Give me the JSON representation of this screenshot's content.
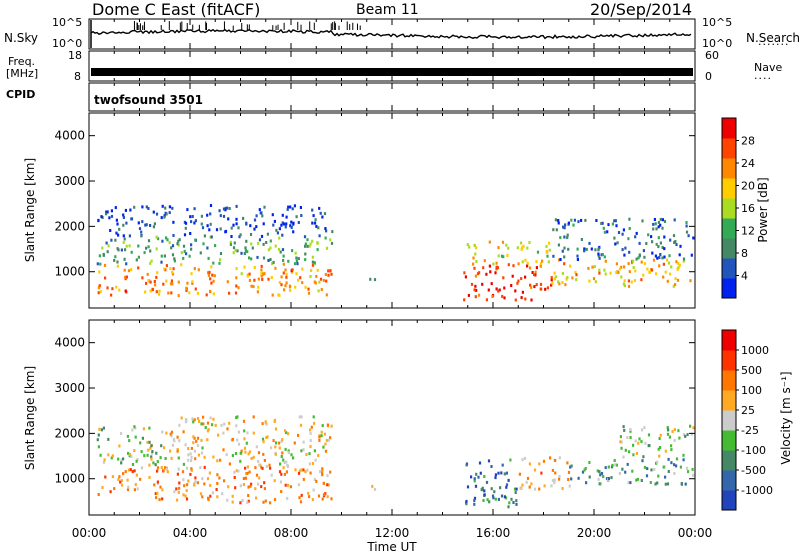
{
  "header": {
    "station": "Dome C East (fitACF)",
    "beam": "Beam 11",
    "date": "20/Sep/2014"
  },
  "status_panels": {
    "nsky_label": "N.Sky",
    "nsearch_label": "N.Search",
    "noise_ticks": [
      "10^5",
      "10^0"
    ],
    "freq_label_1": "Freq.",
    "freq_label_2": "[MHz]",
    "freq_ticks": [
      "18",
      "8"
    ],
    "nave_label": "Nave",
    "nave_ticks": [
      "60",
      "0"
    ],
    "cpid_label": "CPID",
    "cpid_value": "twofsound 3501"
  },
  "colors": {
    "power_scale": [
      "#0022ee",
      "#2255bb",
      "#448866",
      "#33aa55",
      "#aadd22",
      "#ffcc00",
      "#ff8800",
      "#ff4400",
      "#ee0000"
    ],
    "velocity_scale": [
      "#2244bb",
      "#3366aa",
      "#448866",
      "#44bb33",
      "#cccccc",
      "#ffaa22",
      "#ff7700",
      "#ff3300",
      "#ee0000"
    ]
  },
  "chart_data": [
    {
      "type": "heatmap",
      "name": "power",
      "xlabel": "",
      "ylabel": "Slant Range [km]",
      "xlim": [
        0,
        24
      ],
      "ylim": [
        200,
        4500
      ],
      "yticks": [
        "1000",
        "2000",
        "3000",
        "4000"
      ],
      "colorbar_label": "Power [dB]",
      "colorbar_ticks": [
        "4",
        "8",
        "12",
        "16",
        "20",
        "24",
        "28"
      ],
      "regions": [
        {
          "x0": 0.3,
          "x1": 9.6,
          "y0": 500,
          "y1": 1200,
          "level": 0.72
        },
        {
          "x0": 0.3,
          "x1": 9.6,
          "y0": 1200,
          "y1": 1800,
          "level": 0.35
        },
        {
          "x0": 0.3,
          "x1": 9.6,
          "y0": 1800,
          "y1": 2500,
          "level": 0.12
        },
        {
          "x0": 14.8,
          "x1": 18.3,
          "y0": 400,
          "y1": 1200,
          "level": 0.9
        },
        {
          "x0": 14.8,
          "x1": 18.3,
          "y0": 1200,
          "y1": 1700,
          "level": 0.6
        },
        {
          "x0": 18.3,
          "x1": 23.9,
          "y0": 700,
          "y1": 1300,
          "level": 0.65
        },
        {
          "x0": 18.3,
          "x1": 23.9,
          "y0": 1300,
          "y1": 2200,
          "level": 0.2
        },
        {
          "x0": 11.0,
          "x1": 11.4,
          "y0": 700,
          "y1": 900,
          "level": 0.15
        }
      ]
    },
    {
      "type": "heatmap",
      "name": "velocity",
      "xlabel": "Time UT",
      "ylabel": "Slant Range [km]",
      "xlim": [
        0,
        24
      ],
      "ylim": [
        200,
        4500
      ],
      "xticks": [
        "00:00",
        "04:00",
        "08:00",
        "12:00",
        "16:00",
        "20:00",
        "00:00"
      ],
      "yticks": [
        "1000",
        "2000",
        "3000",
        "4000"
      ],
      "colorbar_label": "Velocity [m s⁻¹]",
      "colorbar_ticks": [
        "1000",
        "500",
        "100",
        "25",
        "-25",
        "-100",
        "-500",
        "-1000"
      ],
      "regions": [
        {
          "x0": 0.3,
          "x1": 9.6,
          "y0": 500,
          "y1": 1300,
          "level": 0.68
        },
        {
          "x0": 0.3,
          "x1": 3.0,
          "y0": 1300,
          "y1": 2200,
          "level": 0.45
        },
        {
          "x0": 3.0,
          "x1": 9.6,
          "y0": 1300,
          "y1": 2400,
          "level": 0.55
        },
        {
          "x0": 14.8,
          "x1": 17.0,
          "y0": 400,
          "y1": 1500,
          "level": 0.2
        },
        {
          "x0": 17.0,
          "x1": 19.0,
          "y0": 800,
          "y1": 1500,
          "level": 0.62
        },
        {
          "x0": 19.0,
          "x1": 23.9,
          "y0": 900,
          "y1": 1500,
          "level": 0.3
        },
        {
          "x0": 21.0,
          "x1": 23.9,
          "y0": 1500,
          "y1": 2200,
          "level": 0.45
        },
        {
          "x0": 11.0,
          "x1": 11.4,
          "y0": 700,
          "y1": 900,
          "level": 0.7
        }
      ]
    }
  ]
}
